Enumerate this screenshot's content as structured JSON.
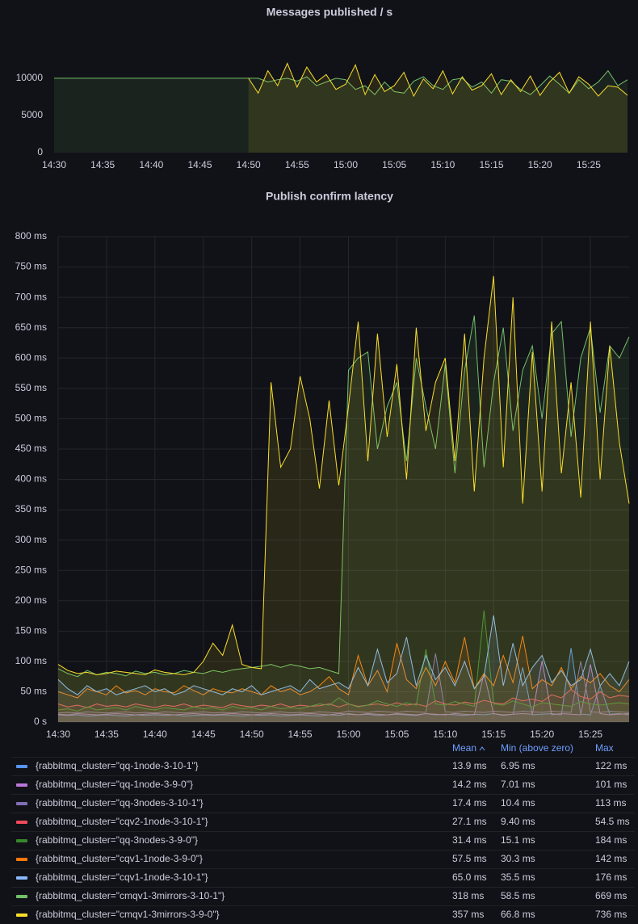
{
  "chart_data": [
    {
      "type": "line",
      "title": "Messages published / s",
      "x": [
        "14:30",
        "14:31",
        "14:32",
        "14:33",
        "14:34",
        "14:35",
        "14:36",
        "14:37",
        "14:38",
        "14:39",
        "14:40",
        "14:41",
        "14:42",
        "14:43",
        "14:44",
        "14:45",
        "14:46",
        "14:47",
        "14:48",
        "14:49",
        "14:50",
        "14:51",
        "14:52",
        "14:53",
        "14:54",
        "14:55",
        "14:56",
        "14:57",
        "14:58",
        "14:59",
        "15:00",
        "15:01",
        "15:02",
        "15:03",
        "15:04",
        "15:05",
        "15:06",
        "15:07",
        "15:08",
        "15:09",
        "15:10",
        "15:11",
        "15:12",
        "15:13",
        "15:14",
        "15:15",
        "15:16",
        "15:17",
        "15:18",
        "15:19",
        "15:20",
        "15:21",
        "15:22",
        "15:23",
        "15:24",
        "15:25",
        "15:26",
        "15:27",
        "15:28",
        "15:29"
      ],
      "xlim": [
        "14:30",
        "15:29"
      ],
      "xticks": [
        "14:30",
        "14:35",
        "14:40",
        "14:45",
        "14:50",
        "14:55",
        "15:00",
        "15:05",
        "15:10",
        "15:15",
        "15:20",
        "15:25"
      ],
      "ylim": [
        0,
        14000
      ],
      "yticks": [
        0,
        5000,
        10000
      ],
      "grid": false,
      "series": [
        {
          "color": "#73bf69",
          "values": [
            10000,
            10000,
            10000,
            10000,
            10000,
            10000,
            10000,
            10000,
            10000,
            10000,
            10000,
            10000,
            10000,
            10000,
            10000,
            10000,
            10000,
            10000,
            10000,
            10000,
            10000,
            10000,
            9500,
            9800,
            10000,
            9600,
            10200,
            9000,
            9500,
            10000,
            9800,
            8500,
            9000,
            7800,
            9500,
            8200,
            8000,
            9600,
            10200,
            9000,
            8500,
            9800,
            10000,
            8800,
            9500,
            8000,
            9800,
            9600,
            8500,
            7800,
            9000,
            10300,
            9200,
            8000,
            9800,
            8600,
            9500,
            11000,
            9000,
            9800
          ]
        },
        {
          "color": "#fade2a",
          "values": [
            null,
            null,
            null,
            null,
            null,
            null,
            null,
            null,
            null,
            null,
            null,
            null,
            null,
            null,
            null,
            null,
            null,
            null,
            null,
            null,
            10000,
            8000,
            11000,
            9000,
            12000,
            8800,
            11500,
            9500,
            10500,
            8500,
            9200,
            11800,
            7800,
            10500,
            8200,
            9000,
            10800,
            7600,
            9900,
            8600,
            11000,
            7900,
            10200,
            8400,
            9000,
            10600,
            7800,
            9800,
            8200,
            10300,
            7700,
            9500,
            10800,
            8000,
            10200,
            9200,
            7600,
            9000,
            8800,
            7700
          ]
        }
      ]
    },
    {
      "type": "line",
      "title": "Publish confirm latency",
      "x": [
        "14:30",
        "14:31",
        "14:32",
        "14:33",
        "14:34",
        "14:35",
        "14:36",
        "14:37",
        "14:38",
        "14:39",
        "14:40",
        "14:41",
        "14:42",
        "14:43",
        "14:44",
        "14:45",
        "14:46",
        "14:47",
        "14:48",
        "14:49",
        "14:50",
        "14:51",
        "14:52",
        "14:53",
        "14:54",
        "14:55",
        "14:56",
        "14:57",
        "14:58",
        "14:59",
        "15:00",
        "15:01",
        "15:02",
        "15:03",
        "15:04",
        "15:05",
        "15:06",
        "15:07",
        "15:08",
        "15:09",
        "15:10",
        "15:11",
        "15:12",
        "15:13",
        "15:14",
        "15:15",
        "15:16",
        "15:17",
        "15:18",
        "15:19",
        "15:20",
        "15:21",
        "15:22",
        "15:23",
        "15:24",
        "15:25",
        "15:26",
        "15:27",
        "15:28",
        "15:29"
      ],
      "xlim": [
        "14:30",
        "15:29"
      ],
      "xticks": [
        "14:30",
        "14:35",
        "14:40",
        "14:45",
        "14:50",
        "14:55",
        "15:00",
        "15:05",
        "15:10",
        "15:15",
        "15:20",
        "15:25"
      ],
      "ylim": [
        0,
        800
      ],
      "grid": true,
      "yticks": [
        {
          "value": 0,
          "label": "0 s"
        },
        {
          "value": 50,
          "label": "50 ms"
        },
        {
          "value": 100,
          "label": "100 ms"
        },
        {
          "value": 150,
          "label": "150 ms"
        },
        {
          "value": 200,
          "label": "200 ms"
        },
        {
          "value": 250,
          "label": "250 ms"
        },
        {
          "value": 300,
          "label": "300 ms"
        },
        {
          "value": 350,
          "label": "350 ms"
        },
        {
          "value": 400,
          "label": "400 ms"
        },
        {
          "value": 450,
          "label": "450 ms"
        },
        {
          "value": 500,
          "label": "500 ms"
        },
        {
          "value": 550,
          "label": "550 ms"
        },
        {
          "value": 600,
          "label": "600 ms"
        },
        {
          "value": 650,
          "label": "650 ms"
        },
        {
          "value": 700,
          "label": "700 ms"
        },
        {
          "value": 750,
          "label": "750 ms"
        },
        {
          "value": 800,
          "label": "800 ms"
        }
      ],
      "series": [
        {
          "name": "{rabbitmq_cluster=\"qq-1node-3-10-1\"}",
          "color": "#5794f2",
          "values": [
            12,
            11,
            12,
            10,
            11,
            12,
            11,
            10,
            12,
            11,
            12,
            11,
            12,
            10,
            11,
            12,
            11,
            12,
            11,
            10,
            12,
            11,
            12,
            10,
            11,
            12,
            11,
            10,
            12,
            11,
            14,
            12,
            13,
            11,
            12,
            13,
            12,
            11,
            14,
            12,
            13,
            12,
            11,
            13,
            12,
            14,
            11,
            13,
            90,
            12,
            13,
            14,
            12,
            122,
            13,
            12,
            60,
            13,
            14,
            12
          ]
        },
        {
          "name": "{rabbitmq_cluster=\"qq-1node-3-9-0\"}",
          "color": "#b877d9",
          "values": [
            13,
            12,
            14,
            13,
            12,
            13,
            14,
            13,
            12,
            13,
            14,
            13,
            12,
            13,
            14,
            13,
            12,
            13,
            14,
            13,
            12,
            13,
            14,
            13,
            12,
            13,
            14,
            13,
            12,
            14,
            13,
            12,
            14,
            13,
            12,
            14,
            13,
            12,
            14,
            13,
            12,
            14,
            13,
            12,
            80,
            14,
            12,
            13,
            14,
            13,
            101,
            12,
            14,
            13,
            12,
            95,
            14,
            12,
            13,
            14
          ]
        },
        {
          "name": "{rabbitmq_cluster=\"qq-3nodes-3-10-1\"}",
          "color": "#806eb7",
          "values": [
            15,
            16,
            15,
            17,
            16,
            15,
            16,
            17,
            15,
            16,
            15,
            17,
            16,
            15,
            16,
            17,
            15,
            16,
            15,
            17,
            16,
            15,
            16,
            17,
            15,
            16,
            15,
            17,
            16,
            15,
            18,
            17,
            16,
            18,
            17,
            16,
            18,
            17,
            16,
            113,
            17,
            16,
            18,
            17,
            16,
            18,
            17,
            16,
            18,
            17,
            16,
            18,
            17,
            16,
            100,
            17,
            16,
            18,
            17,
            16
          ]
        },
        {
          "name": "{rabbitmq_cluster=\"cqv2-1node-3-10-1\"}",
          "color": "#f2495c",
          "values": [
            30,
            25,
            28,
            24,
            30,
            26,
            28,
            25,
            30,
            27,
            24,
            28,
            26,
            30,
            25,
            28,
            26,
            24,
            30,
            27,
            25,
            28,
            26,
            30,
            25,
            28,
            26,
            27,
            30,
            25,
            30,
            26,
            28,
            30,
            27,
            32,
            28,
            30,
            26,
            35,
            30,
            28,
            33,
            30,
            36,
            32,
            30,
            40,
            35,
            38,
            34,
            45,
            40,
            54,
            42,
            38,
            50,
            40,
            44,
            42
          ]
        },
        {
          "name": "{rabbitmq_cluster=\"qq-3nodes-3-9-0\"}",
          "color": "#37872d",
          "values": [
            20,
            22,
            18,
            25,
            20,
            22,
            24,
            20,
            26,
            22,
            20,
            24,
            22,
            20,
            25,
            22,
            24,
            20,
            26,
            22,
            24,
            20,
            26,
            22,
            24,
            22,
            26,
            30,
            28,
            40,
            30,
            25,
            28,
            35,
            30,
            26,
            32,
            28,
            120,
            30,
            28,
            34,
            30,
            26,
            184,
            30,
            28,
            35,
            30,
            25,
            32,
            30,
            28,
            26,
            34,
            30,
            28,
            30,
            32,
            30
          ]
        },
        {
          "name": "{rabbitmq_cluster=\"cqv1-1node-3-9-0\"}",
          "color": "#ff780a",
          "values": [
            50,
            45,
            40,
            55,
            50,
            45,
            60,
            48,
            52,
            45,
            55,
            50,
            48,
            60,
            52,
            45,
            55,
            50,
            48,
            55,
            50,
            45,
            60,
            50,
            55,
            45,
            50,
            60,
            75,
            55,
            45,
            110,
            60,
            85,
            50,
            130,
            70,
            55,
            90,
            60,
            100,
            65,
            140,
            55,
            80,
            60,
            110,
            65,
            142,
            55,
            70,
            60,
            90,
            55,
            75,
            65,
            80,
            60,
            50,
            70
          ]
        },
        {
          "name": "{rabbitmq_cluster=\"cqv1-1node-3-10-1\"}",
          "color": "#8ab8ff",
          "values": [
            70,
            55,
            45,
            60,
            50,
            55,
            45,
            50,
            55,
            60,
            50,
            55,
            45,
            50,
            60,
            55,
            50,
            45,
            55,
            50,
            60,
            45,
            50,
            55,
            60,
            50,
            70,
            55,
            60,
            65,
            55,
            90,
            60,
            120,
            65,
            80,
            140,
            60,
            110,
            70,
            90,
            60,
            100,
            55,
            75,
            176,
            60,
            130,
            60,
            90,
            110,
            65,
            85,
            60,
            70,
            120,
            60,
            80,
            60,
            100
          ]
        },
        {
          "name": "{rabbitmq_cluster=\"cmqv1-3mirrors-3-10-1\"}",
          "color": "#73bf69",
          "values": [
            88,
            80,
            75,
            85,
            78,
            82,
            80,
            76,
            84,
            80,
            82,
            78,
            80,
            85,
            82,
            80,
            85,
            82,
            86,
            88,
            90,
            92,
            95,
            90,
            95,
            92,
            88,
            90,
            85,
            80,
            580,
            600,
            610,
            450,
            520,
            560,
            430,
            600,
            520,
            450,
            590,
            410,
            580,
            670,
            420,
            560,
            650,
            480,
            580,
            620,
            500,
            640,
            660,
            470,
            600,
            650,
            510,
            620,
            600,
            635
          ]
        },
        {
          "name": "{rabbitmq_cluster=\"cmqv1-3mirrors-3-9-0\"}",
          "color": "#fade2a",
          "values": [
            95,
            85,
            80,
            82,
            78,
            80,
            84,
            82,
            80,
            78,
            86,
            82,
            80,
            78,
            82,
            100,
            130,
            110,
            160,
            95,
            90,
            88,
            560,
            420,
            450,
            570,
            500,
            385,
            530,
            390,
            520,
            660,
            430,
            640,
            470,
            590,
            400,
            650,
            480,
            560,
            600,
            430,
            640,
            380,
            600,
            735,
            420,
            700,
            360,
            610,
            380,
            660,
            410,
            560,
            370,
            660,
            400,
            620,
            460,
            360
          ]
        }
      ]
    }
  ],
  "legend_table": {
    "headers": [
      "Mean",
      "Min (above zero)",
      "Max"
    ],
    "rows": [
      [
        "13.9 ms",
        "6.95 ms",
        "122 ms"
      ],
      [
        "14.2 ms",
        "7.01 ms",
        "101 ms"
      ],
      [
        "17.4 ms",
        "10.4 ms",
        "113 ms"
      ],
      [
        "27.1 ms",
        "9.40 ms",
        "54.5 ms"
      ],
      [
        "31.4 ms",
        "15.1 ms",
        "184 ms"
      ],
      [
        "57.5 ms",
        "30.3 ms",
        "142 ms"
      ],
      [
        "65.0 ms",
        "35.5 ms",
        "176 ms"
      ],
      [
        "318 ms",
        "58.5 ms",
        "669 ms"
      ],
      [
        "357 ms",
        "66.8 ms",
        "736 ms"
      ]
    ]
  }
}
